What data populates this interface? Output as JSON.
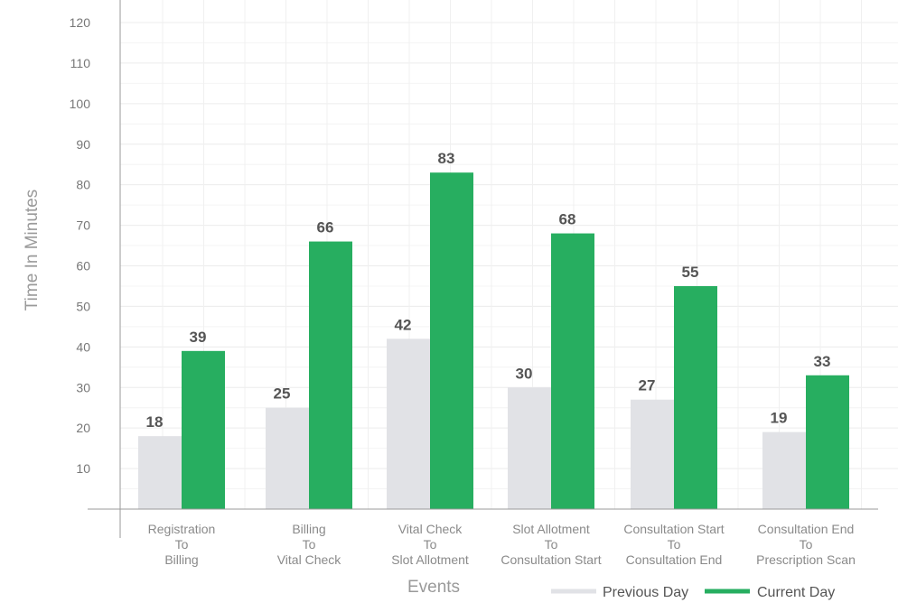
{
  "chart_data": {
    "type": "bar",
    "title": "",
    "xlabel": "Events",
    "ylabel": "Time In Minutes",
    "yticks": [
      10,
      20,
      30,
      40,
      50,
      60,
      70,
      80,
      90,
      100,
      110,
      120
    ],
    "ylim": [
      0,
      120
    ],
    "grid": true,
    "legend_position": "bottom-right",
    "categories": [
      [
        "Registration",
        "To",
        "Billing"
      ],
      [
        "Billing",
        "To",
        "Vital Check"
      ],
      [
        "Vital Check",
        "To",
        "Slot Allotment"
      ],
      [
        "Slot Allotment",
        "To",
        "Consultation Start"
      ],
      [
        "Consultation Start",
        "To",
        "Consultation End"
      ],
      [
        "Consultation End",
        "To",
        "Prescription Scan"
      ]
    ],
    "series": [
      {
        "name": "Previous Day",
        "color": "#e1e2e6",
        "values": [
          18,
          25,
          42,
          30,
          27,
          19
        ],
        "value_labels": [
          "18",
          "25",
          "42",
          "30",
          "27",
          "19"
        ]
      },
      {
        "name": "Current Day",
        "color": "#27ae60",
        "values": [
          39,
          66,
          83,
          68,
          55,
          33
        ],
        "value_labels": [
          "39",
          "66",
          "83",
          "68",
          "55",
          "33"
        ]
      }
    ]
  }
}
